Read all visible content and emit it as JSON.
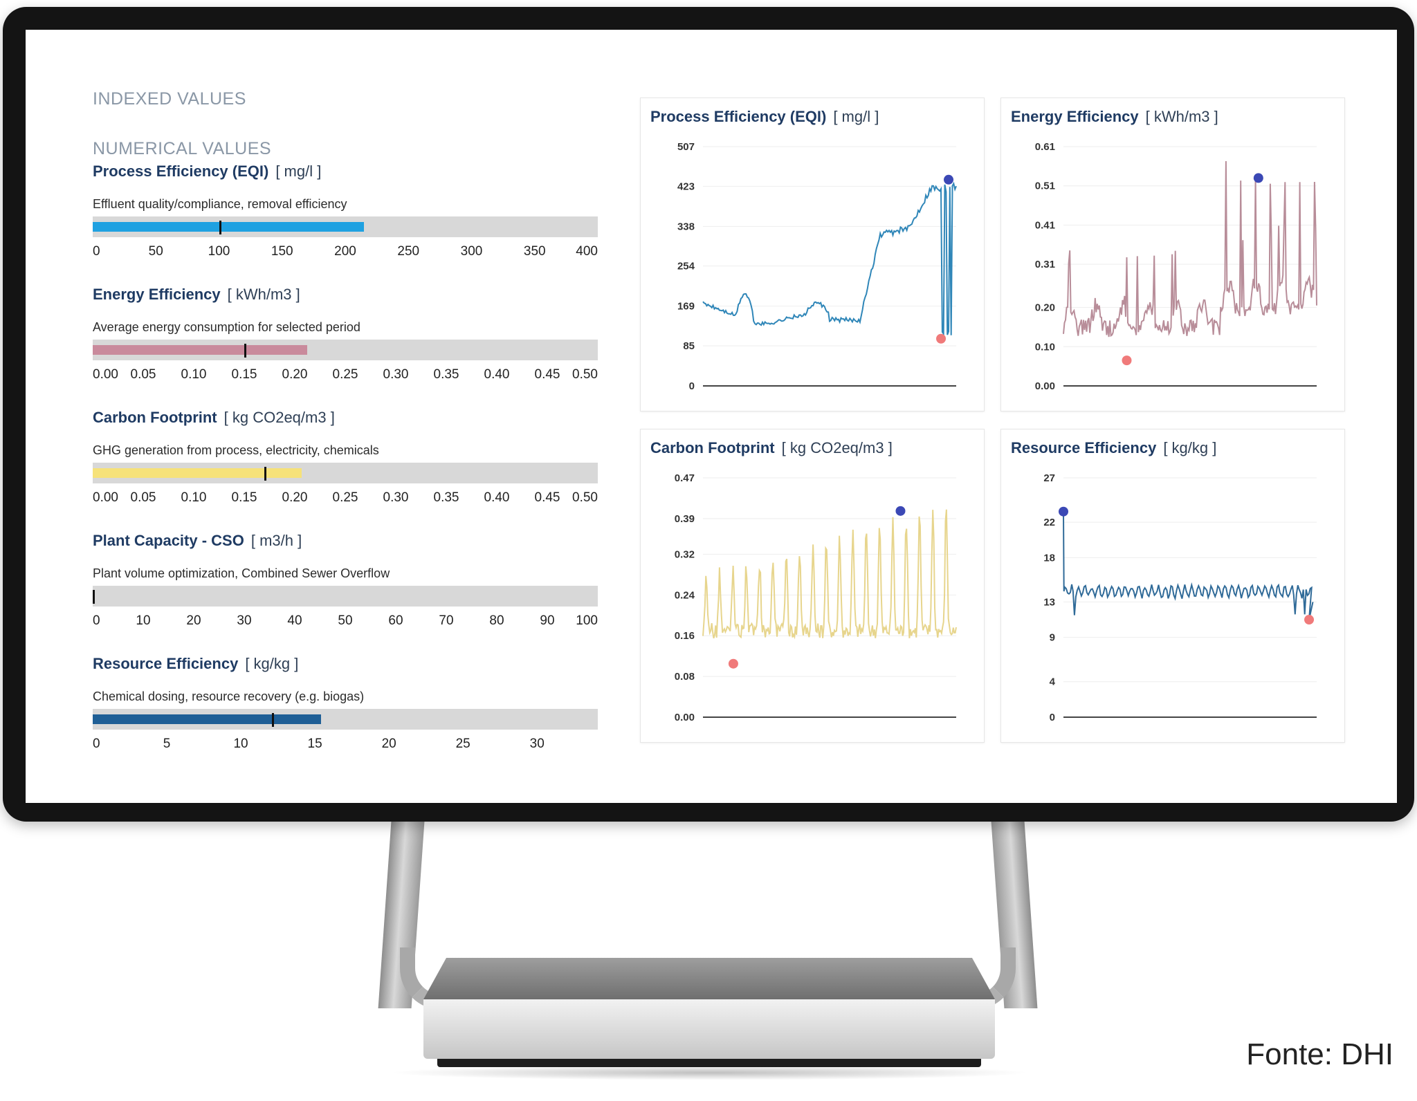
{
  "screen": {
    "indexed_heading": "INDEXED VALUES",
    "numerical_heading": "NUMERICAL VALUES"
  },
  "metrics": [
    {
      "title": "Process Efficiency (EQI)",
      "unit": "[ mg/l ]",
      "description": "Effluent quality/compliance, removal efficiency",
      "ticks": [
        "0",
        "50",
        "100",
        "150",
        "200",
        "250",
        "300",
        "350",
        "400"
      ],
      "min": 0,
      "max": 400,
      "value": 215,
      "marker": 100,
      "color": "#1fa1e1"
    },
    {
      "title": "Energy Efficiency",
      "unit": "[ kWh/m3 ]",
      "description": "Average energy consumption for selected period",
      "ticks": [
        "0.00",
        "0.05",
        "0.10",
        "0.15",
        "0.20",
        "0.25",
        "0.30",
        "0.35",
        "0.40",
        "0.45",
        "0.50"
      ],
      "min": 0,
      "max": 0.5,
      "value": 0.212,
      "marker": 0.15,
      "color": "#c98a9c"
    },
    {
      "title": "Carbon Footprint",
      "unit": "[ kg CO2eq/m3 ]",
      "description": "GHG generation from process, electricity, chemicals",
      "ticks": [
        "0.00",
        "0.05",
        "0.10",
        "0.15",
        "0.20",
        "0.25",
        "0.30",
        "0.35",
        "0.40",
        "0.45",
        "0.50"
      ],
      "min": 0,
      "max": 0.5,
      "value": 0.207,
      "marker": 0.17,
      "color": "#f6e27a"
    },
    {
      "title": "Plant Capacity - CSO",
      "unit": "[ m3/h ]",
      "description": "Plant volume optimization, Combined Sewer Overflow",
      "ticks": [
        "0",
        "10",
        "20",
        "30",
        "40",
        "50",
        "60",
        "70",
        "80",
        "90",
        "100"
      ],
      "min": 0,
      "max": 100,
      "value": 0,
      "marker": 0,
      "color": "#1f5f96"
    },
    {
      "title": "Resource Efficiency",
      "unit": "[ kg/kg ]",
      "description": "Chemical dosing, resource recovery (e.g. biogas)",
      "ticks": [
        "0",
        "5",
        "10",
        "15",
        "20",
        "25",
        "30"
      ],
      "min": 0,
      "max": 34.1,
      "value": 15.4,
      "marker": 12.1,
      "color": "#1f5f96"
    }
  ],
  "charts": [
    {
      "title": "Process Efficiency (EQI)",
      "unit": "[ mg/l ]",
      "yticks": [
        "507",
        "423",
        "338",
        "254",
        "169",
        "85",
        "0"
      ],
      "ymin": 0,
      "ymax": 507,
      "line_color": "#2f86b8",
      "max_color": "#3b48b5",
      "min_color": "#f07a7a",
      "shape": "eqi",
      "max_point": [
        0.97,
        437
      ],
      "min_point": [
        0.94,
        100
      ]
    },
    {
      "title": "Energy Efficiency",
      "unit": "[ kWh/m3 ]",
      "yticks": [
        "0.61",
        "0.51",
        "0.41",
        "0.31",
        "0.20",
        "0.10",
        "0.00"
      ],
      "ymin": 0,
      "ymax": 0.61,
      "line_color": "#b88d99",
      "max_color": "#3b48b5",
      "min_color": "#f07a7a",
      "shape": "energy",
      "max_point": [
        0.77,
        0.53
      ],
      "min_point": [
        0.25,
        0.065
      ]
    },
    {
      "title": "Carbon Footprint",
      "unit": "[ kg CO2eq/m3 ]",
      "yticks": [
        "0.47",
        "0.39",
        "0.32",
        "0.24",
        "0.16",
        "0.08",
        "0.00"
      ],
      "ymin": 0,
      "ymax": 0.47,
      "line_color": "#e7d58d",
      "max_color": "#3b48b5",
      "min_color": "#f07a7a",
      "shape": "carbon",
      "max_point": [
        0.78,
        0.405
      ],
      "min_point": [
        0.12,
        0.105
      ]
    },
    {
      "title": "Resource Efficiency",
      "unit": "[ kg/kg ]",
      "yticks": [
        "27",
        "22",
        "18",
        "13",
        "9",
        "4",
        "0"
      ],
      "ymin": 0,
      "ymax": 27,
      "line_color": "#2f6a98",
      "max_color": "#3b48b5",
      "min_color": "#f07a7a",
      "shape": "resource",
      "max_point": [
        0.0,
        23.2
      ],
      "min_point": [
        0.97,
        11.0
      ]
    }
  ],
  "footer": {
    "credit": "Fonte: DHI"
  }
}
